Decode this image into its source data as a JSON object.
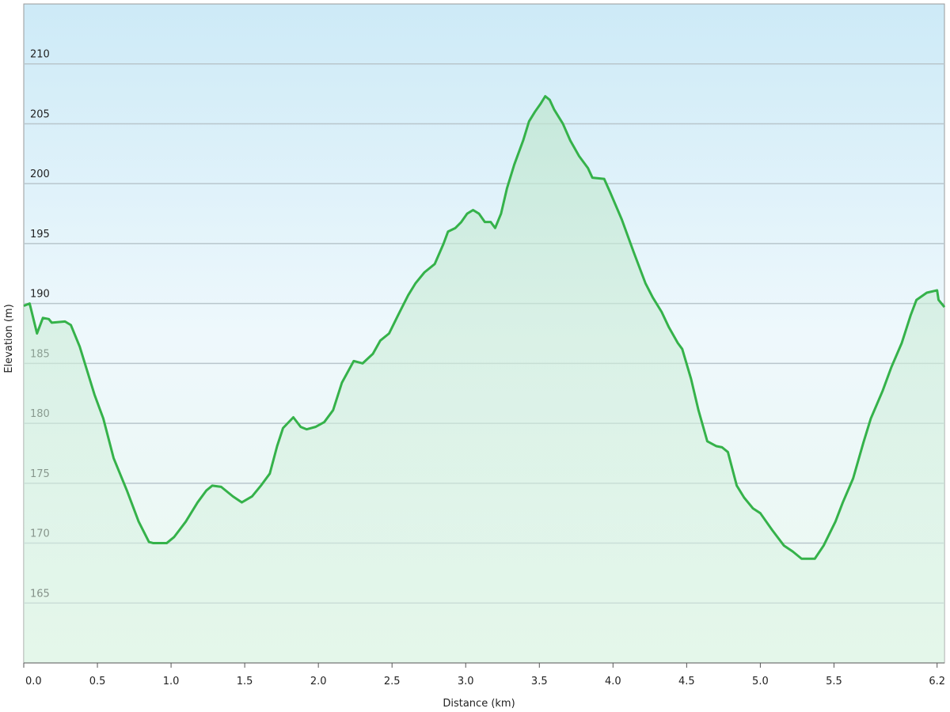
{
  "chart_data": {
    "type": "line",
    "x_label": "Distance  (km)",
    "y_label": "Elevation (m)",
    "x": [
      0,
      0.04,
      0.09,
      0.13,
      0.17,
      0.19,
      0.28,
      0.32,
      0.38,
      0.43,
      0.48,
      0.54,
      0.61,
      0.7,
      0.78,
      0.85,
      0.88,
      0.97,
      1.02,
      1.1,
      1.18,
      1.24,
      1.28,
      1.34,
      1.42,
      1.48,
      1.55,
      1.61,
      1.67,
      1.72,
      1.76,
      1.83,
      1.88,
      1.92,
      1.98,
      2.04,
      2.1,
      2.16,
      2.24,
      2.3,
      2.37,
      2.42,
      2.48,
      2.54,
      2.61,
      2.66,
      2.72,
      2.79,
      2.85,
      2.88,
      2.93,
      2.97,
      3.01,
      3.05,
      3.09,
      3.13,
      3.17,
      3.2,
      3.24,
      3.28,
      3.33,
      3.39,
      3.43,
      3.47,
      3.51,
      3.54,
      3.57,
      3.6,
      3.66,
      3.71,
      3.77,
      3.83,
      3.86,
      3.94,
      3.98,
      4.06,
      4.14,
      4.22,
      4.27,
      4.33,
      4.38,
      4.44,
      4.47,
      4.53,
      4.58,
      4.64,
      4.7,
      4.74,
      4.78,
      4.84,
      4.89,
      4.95,
      5.0,
      5.08,
      5.16,
      5.22,
      5.28,
      5.37,
      5.43,
      5.51,
      5.56,
      5.63,
      5.7,
      5.75,
      5.83,
      5.89,
      5.96,
      6.02,
      6.06,
      6.13,
      6.2,
      6.21,
      6.25
    ],
    "series": [
      {
        "color": "#35b24a",
        "values": [
          189.8,
          190,
          187.5,
          188.8,
          188.7,
          188.4,
          188.5,
          188.2,
          186.4,
          184.4,
          182.4,
          180.4,
          177.1,
          174.4,
          171.8,
          170.1,
          170.0,
          170.0,
          170.5,
          171.8,
          173.4,
          174.4,
          174.8,
          174.7,
          173.9,
          173.4,
          173.9,
          174.8,
          175.8,
          178.1,
          179.6,
          180.5,
          179.7,
          179.5,
          179.7,
          180.1,
          181.1,
          183.4,
          185.2,
          185.0,
          185.8,
          186.9,
          187.5,
          189.0,
          190.7,
          191.7,
          192.6,
          193.3,
          195.0,
          196.0,
          196.3,
          196.8,
          197.5,
          197.8,
          197.5,
          196.8,
          196.8,
          196.3,
          197.5,
          199.6,
          201.6,
          203.6,
          205.2,
          206.0,
          206.7,
          207.3,
          207.0,
          206.2,
          205.0,
          203.6,
          202.3,
          201.3,
          200.5,
          200.4,
          199.3,
          197.0,
          194.3,
          191.7,
          190.5,
          189.3,
          188.0,
          186.7,
          186.2,
          183.7,
          181.1,
          178.5,
          178.1,
          178.0,
          177.6,
          174.8,
          173.8,
          172.9,
          172.5,
          171.1,
          169.8,
          169.3,
          168.7,
          168.7,
          169.8,
          171.8,
          173.4,
          175.4,
          178.4,
          180.4,
          182.7,
          184.7,
          186.7,
          189.0,
          190.3,
          190.9,
          191.1,
          190.3,
          189.7
        ]
      }
    ],
    "xlim": [
      0,
      6.25
    ],
    "ylim": [
      160,
      215
    ],
    "xticks": [
      {
        "value": 0,
        "label": "0.0"
      },
      0.5,
      {
        "value": 1,
        "label": "1.0"
      },
      1.5,
      {
        "value": 2,
        "label": "2.0"
      },
      2.5,
      {
        "value": 3,
        "label": "3.0"
      },
      3.5,
      {
        "value": 4,
        "label": "4.0"
      },
      4.5,
      {
        "value": 5,
        "label": "5.0"
      },
      5.5,
      6.2
    ],
    "yticks": [
      165,
      170,
      175,
      180,
      185,
      190,
      195,
      200,
      205,
      210
    ],
    "grid": true
  }
}
